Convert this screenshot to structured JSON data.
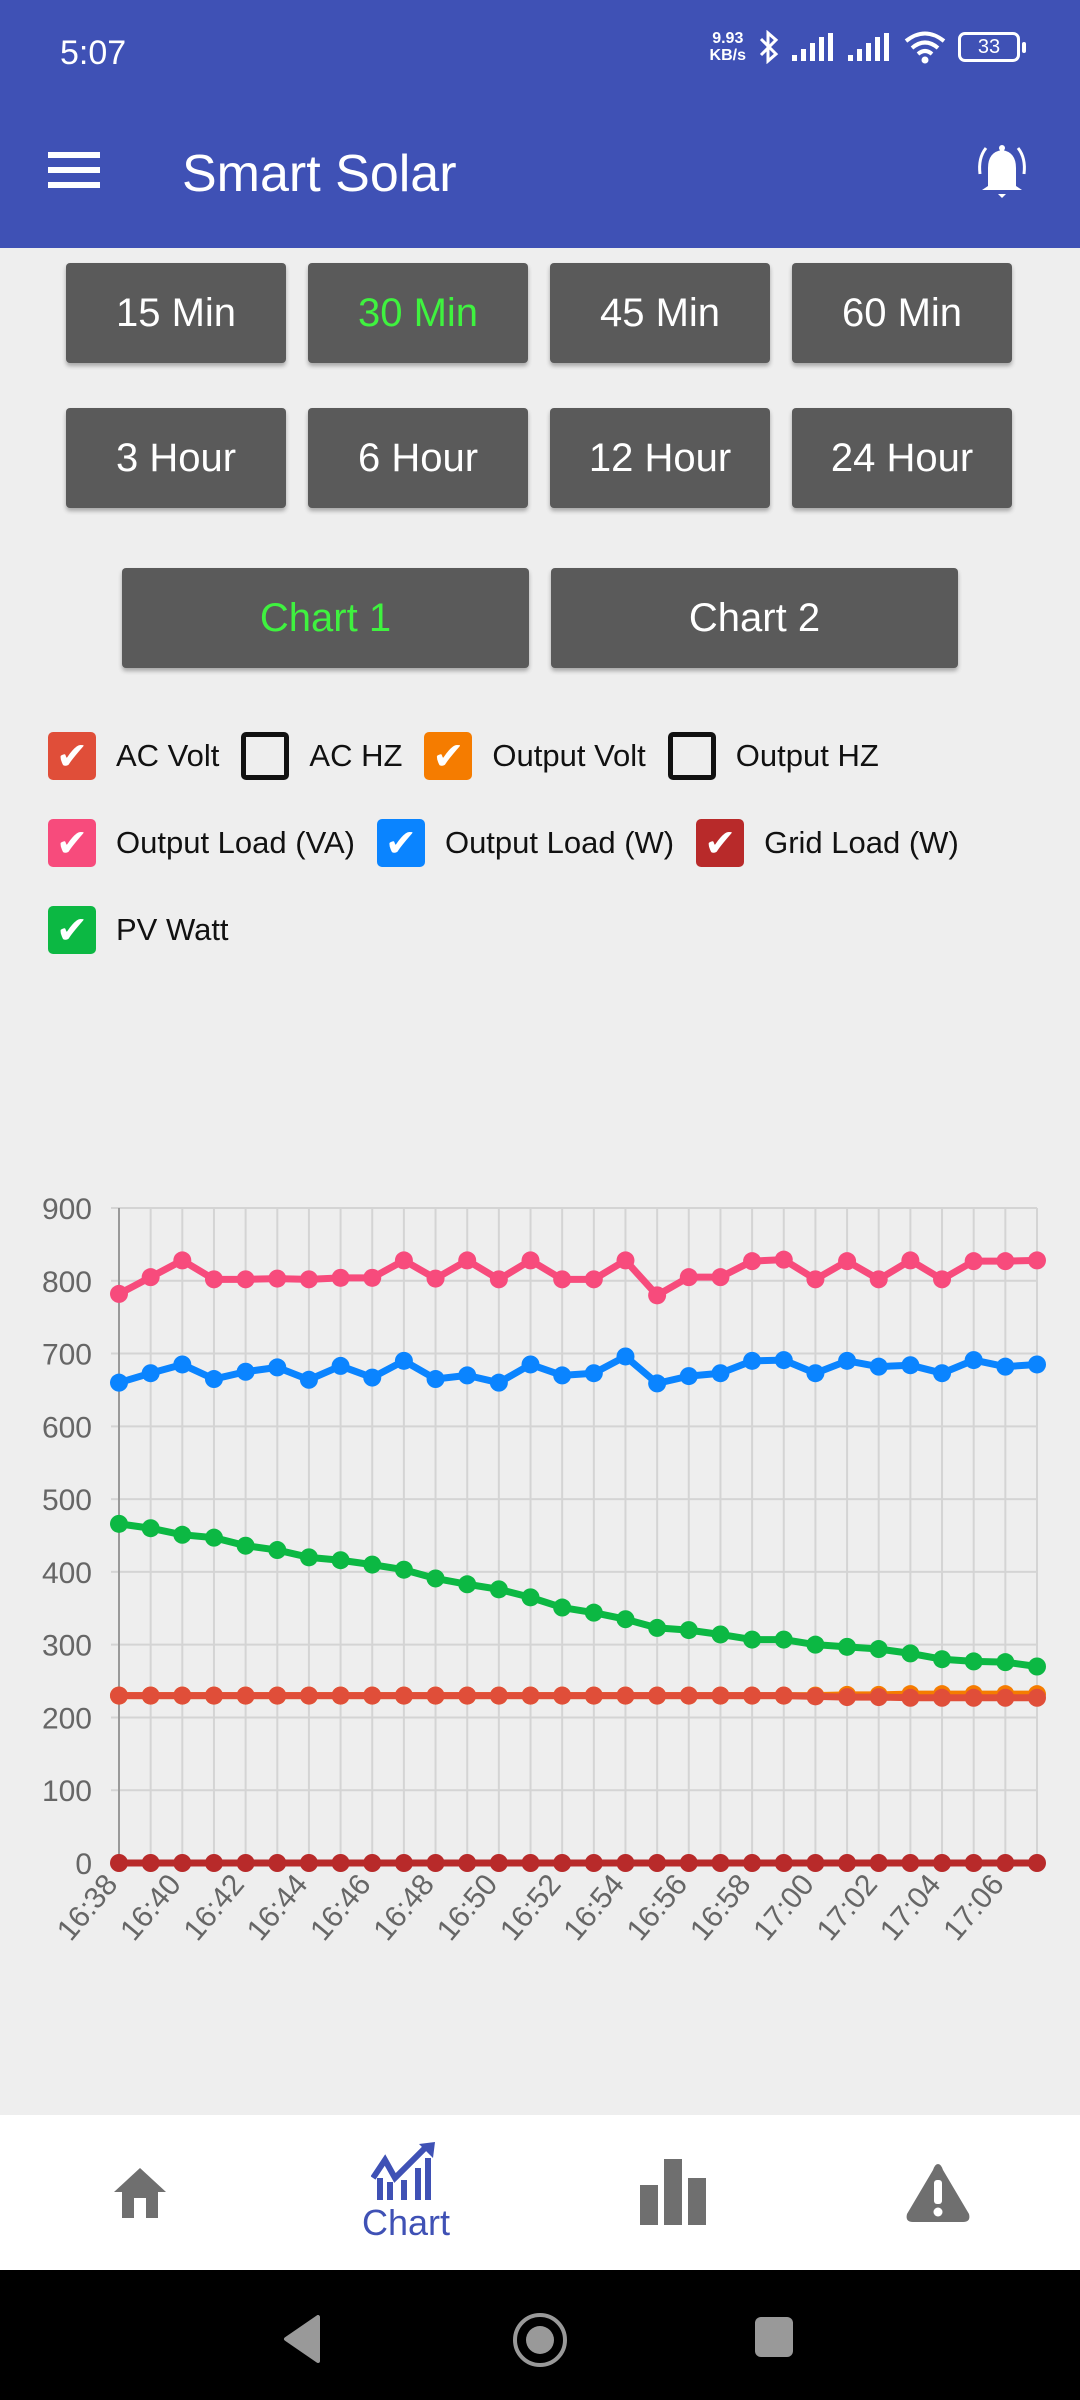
{
  "status_bar": {
    "time": "5:07",
    "net_speed_value": "9.93",
    "net_speed_unit": "KB/s",
    "battery": "33"
  },
  "app_bar": {
    "title": "Smart Solar"
  },
  "range_buttons": [
    {
      "label": "15 Min",
      "active": false
    },
    {
      "label": "30 Min",
      "active": true
    },
    {
      "label": "45 Min",
      "active": false
    },
    {
      "label": "60 Min",
      "active": false
    },
    {
      "label": "3 Hour",
      "active": false
    },
    {
      "label": "6 Hour",
      "active": false
    },
    {
      "label": "12 Hour",
      "active": false
    },
    {
      "label": "24 Hour",
      "active": false
    }
  ],
  "chart_buttons": [
    {
      "label": "Chart 1",
      "active": true
    },
    {
      "label": "Chart 2",
      "active": false
    }
  ],
  "legend": [
    {
      "label": "AC Volt",
      "checked": true,
      "color": "#e04e39"
    },
    {
      "label": "AC HZ",
      "checked": false,
      "color": "#111111"
    },
    {
      "label": "Output Volt",
      "checked": true,
      "color": "#f57c00"
    },
    {
      "label": "Output HZ",
      "checked": false,
      "color": "#111111"
    },
    {
      "label": "Output Load (VA)",
      "checked": true,
      "color": "#f74b7c"
    },
    {
      "label": "Output Load (W)",
      "checked": true,
      "color": "#0a84ff"
    },
    {
      "label": "Grid Load (W)",
      "checked": true,
      "color": "#b82a2a"
    },
    {
      "label": "PV Watt",
      "checked": true,
      "color": "#0cb843"
    }
  ],
  "chart_data": {
    "type": "line",
    "title": "",
    "xlabel": "",
    "ylabel": "",
    "ylim": [
      0,
      900
    ],
    "yticks": [
      "0",
      "100",
      "200",
      "300",
      "400",
      "500",
      "600",
      "700",
      "800",
      "900"
    ],
    "grid": true,
    "x": [
      "16:38",
      "16:39",
      "16:40",
      "16:41",
      "16:42",
      "16:43",
      "16:44",
      "16:45",
      "16:46",
      "16:47",
      "16:48",
      "16:49",
      "16:50",
      "16:51",
      "16:52",
      "16:53",
      "16:54",
      "16:55",
      "16:56",
      "16:57",
      "16:58",
      "16:59",
      "17:00",
      "17:01",
      "17:02",
      "17:03",
      "17:04",
      "17:05",
      "17:06",
      "17:07"
    ],
    "xtick_labels": [
      "16:38",
      "16:40",
      "16:42",
      "16:44",
      "16:46",
      "16:48",
      "16:50",
      "16:52",
      "16:54",
      "16:56",
      "16:58",
      "17:00",
      "17:02",
      "17:04",
      "17:06"
    ],
    "series": [
      {
        "name": "Output Volt",
        "color": "#f57c00",
        "values": [
          230,
          230,
          230,
          230,
          230,
          230,
          230,
          230,
          230,
          230,
          230,
          230,
          230,
          230,
          230,
          230,
          230,
          230,
          230,
          230,
          230,
          230,
          230,
          231,
          231,
          232,
          232,
          232,
          232,
          232
        ]
      },
      {
        "name": "AC Volt",
        "color": "#e04e39",
        "values": [
          230,
          230,
          230,
          230,
          230,
          230,
          230,
          230,
          230,
          230,
          230,
          230,
          230,
          230,
          230,
          230,
          230,
          230,
          230,
          230,
          230,
          230,
          229,
          228,
          228,
          227,
          227,
          227,
          227,
          227
        ]
      },
      {
        "name": "Output Load (VA)",
        "color": "#f74b7c",
        "values": [
          782,
          805,
          828,
          802,
          802,
          803,
          802,
          804,
          804,
          828,
          803,
          828,
          802,
          828,
          802,
          802,
          828,
          780,
          805,
          805,
          827,
          829,
          802,
          827,
          802,
          828,
          802,
          827,
          827,
          828
        ]
      },
      {
        "name": "Output Load (W)",
        "color": "#0a84ff",
        "values": [
          660,
          673,
          685,
          665,
          675,
          681,
          664,
          683,
          667,
          690,
          665,
          670,
          660,
          685,
          670,
          673,
          696,
          659,
          669,
          673,
          690,
          691,
          673,
          690,
          682,
          684,
          673,
          691,
          682,
          685
        ]
      },
      {
        "name": "PV Watt",
        "color": "#0cb843",
        "values": [
          466,
          460,
          451,
          447,
          436,
          430,
          420,
          416,
          410,
          403,
          391,
          383,
          376,
          365,
          351,
          344,
          335,
          323,
          320,
          314,
          307,
          307,
          300,
          297,
          294,
          288,
          280,
          277,
          276,
          270
        ]
      },
      {
        "name": "Grid Load (W)",
        "color": "#b82a2a",
        "values": [
          0,
          0,
          0,
          0,
          0,
          0,
          0,
          0,
          0,
          0,
          0,
          0,
          0,
          0,
          0,
          0,
          0,
          0,
          0,
          0,
          0,
          0,
          0,
          0,
          0,
          0,
          0,
          0,
          0,
          0
        ]
      }
    ]
  },
  "bottom_nav": {
    "active_label": "Chart"
  },
  "colors": {
    "primary": "#3f51b5",
    "button": "#5a5a5a",
    "active_text": "#3ff23f"
  }
}
